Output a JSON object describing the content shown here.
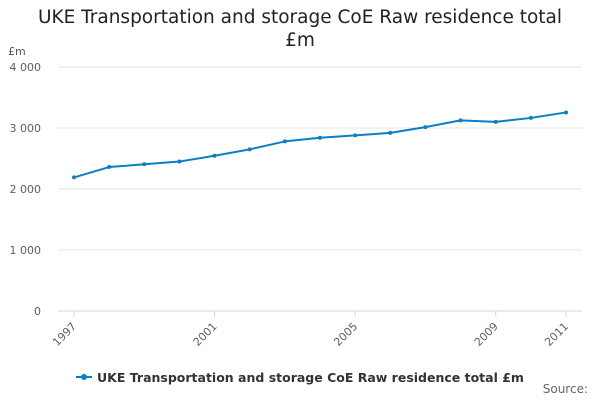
{
  "colors": {
    "series": "#0b7fc4",
    "grid": "#e6e6e6",
    "axis": "#ccd6eb"
  },
  "chart_data": {
    "type": "line",
    "title": "UKE Transportation and storage CoE Raw residence total £m",
    "ylabel": "£m",
    "xlabel": "",
    "x": [
      1997,
      1998,
      1999,
      2000,
      2001,
      2002,
      2003,
      2004,
      2005,
      2006,
      2007,
      2008,
      2009,
      2010,
      2011
    ],
    "x_tick_labels": [
      "1997",
      "2001",
      "2005",
      "2009",
      "2011"
    ],
    "x_tick_values": [
      1997,
      2001,
      2005,
      2009,
      2011
    ],
    "y_tick_labels": [
      "0",
      "1 000",
      "2 000",
      "3 000",
      "4 000"
    ],
    "y_tick_values": [
      0,
      1000,
      2000,
      3000,
      4000
    ],
    "ylim": [
      0,
      4000
    ],
    "grid": true,
    "legend_position": "bottom",
    "series": [
      {
        "name": "UKE Transportation and storage CoE Raw residence total £m",
        "values": [
          2190,
          2360,
          2405,
          2450,
          2545,
          2650,
          2780,
          2840,
          2880,
          2920,
          3015,
          3125,
          3100,
          3165,
          3255
        ]
      }
    ]
  },
  "footer": {
    "source_label": "Source:"
  }
}
